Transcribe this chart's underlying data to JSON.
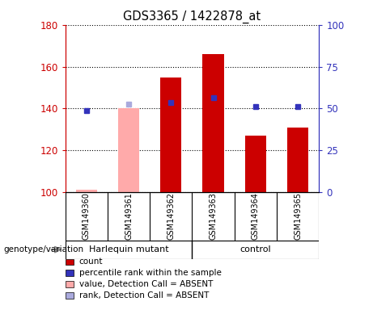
{
  "title": "GDS3365 / 1422878_at",
  "samples": [
    "GSM149360",
    "GSM149361",
    "GSM149362",
    "GSM149363",
    "GSM149364",
    "GSM149365"
  ],
  "count_values": [
    null,
    null,
    155,
    166,
    127,
    131
  ],
  "count_color": "#cc0000",
  "absent_value_bars": [
    101,
    140,
    null,
    null,
    null,
    null
  ],
  "absent_value_color": "#ffaaaa",
  "percentile_values": [
    139,
    null,
    143,
    145,
    141,
    141
  ],
  "percentile_color": "#3333bb",
  "absent_rank_values": [
    null,
    142,
    null,
    null,
    null,
    null
  ],
  "absent_rank_color": "#aaaadd",
  "ylim": [
    100,
    180
  ],
  "yticks_left": [
    100,
    120,
    140,
    160,
    180
  ],
  "yticks_right": [
    0,
    25,
    50,
    75,
    100
  ],
  "ylabel_left_color": "#cc0000",
  "ylabel_right_color": "#3333bb",
  "bar_width": 0.5,
  "marker_size": 5,
  "grid_color": "black",
  "sample_bg_color": "#d0d0d0",
  "group_bg_color": "#66ee66",
  "plot_bg_color": "#ffffff",
  "harlequin_label": "Harlequin mutant",
  "control_label": "control",
  "genotype_label": "genotype/variation",
  "legend_items": [
    {
      "label": "count",
      "color": "#cc0000"
    },
    {
      "label": "percentile rank within the sample",
      "color": "#3333bb"
    },
    {
      "label": "value, Detection Call = ABSENT",
      "color": "#ffaaaa"
    },
    {
      "label": "rank, Detection Call = ABSENT",
      "color": "#aaaadd"
    }
  ]
}
